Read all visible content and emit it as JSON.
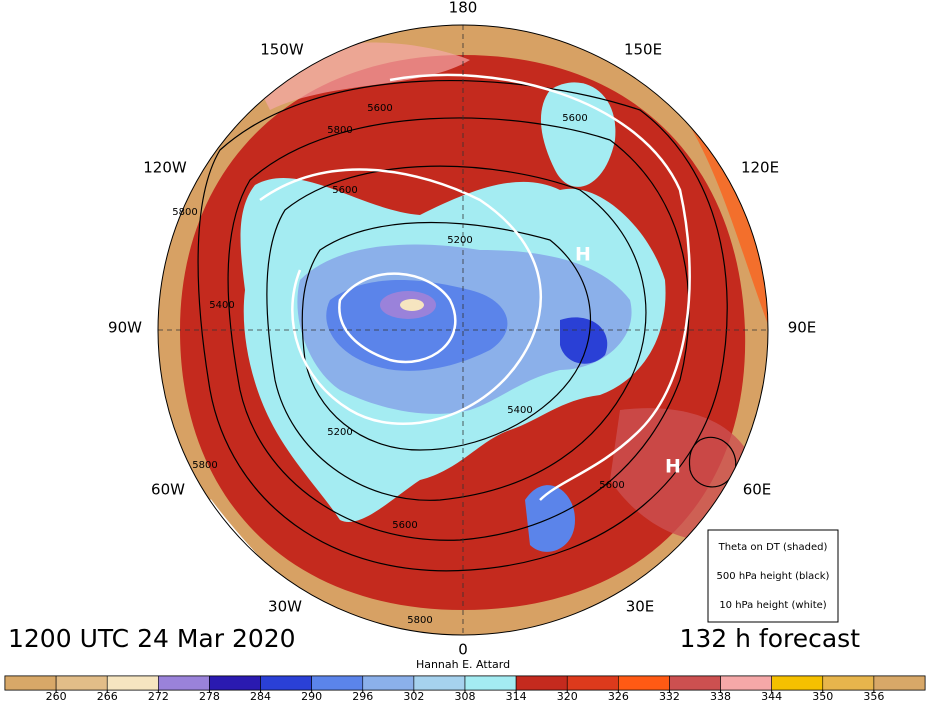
{
  "map": {
    "longitude_labels": [
      "180",
      "150E",
      "120E",
      "90E",
      "60E",
      "30E",
      "0",
      "30W",
      "60W",
      "90W",
      "120W",
      "150W"
    ],
    "valid_time": "1200 UTC 24 Mar 2020",
    "forecast": "132 h forecast",
    "author": "Hannah E. Attard",
    "legend": [
      "Theta on DT (shaded)",
      "500 hPa height (black)",
      "10 hPa height (white)"
    ],
    "pressure_centers": [
      "H",
      "H"
    ],
    "contour_labels": [
      "5800",
      "5600",
      "5600",
      "5800",
      "5400",
      "5200",
      "5400",
      "5600",
      "5600",
      "5800",
      "5600",
      "5800",
      "5200"
    ]
  },
  "colorbar": {
    "ticks": [
      260,
      266,
      272,
      278,
      284,
      290,
      296,
      302,
      308,
      314,
      320,
      326,
      332,
      338,
      344,
      350,
      356
    ],
    "colors": [
      "#d8a868",
      "#e2bd88",
      "#f6e5c0",
      "#9a82da",
      "#2a1ab0",
      "#2a40d6",
      "#5b84ea",
      "#8bb0ea",
      "#a6d2ee",
      "#a4ecf2",
      "#c42a1e",
      "#dd3a1c",
      "#ff5a14",
      "#cc5050",
      "#f5a8a8",
      "#f5c000",
      "#e7b54c",
      "#d8a868"
    ]
  }
}
